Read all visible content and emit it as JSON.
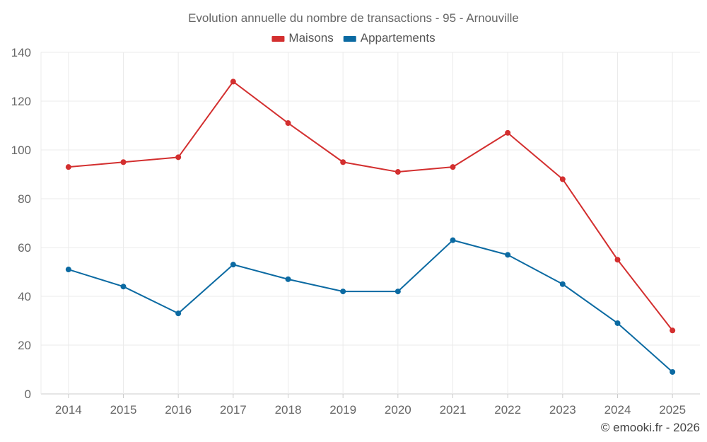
{
  "chart_data": {
    "type": "line",
    "title": "Evolution annuelle du nombre de transactions - 95 - Arnouville",
    "categories": [
      "2014",
      "2015",
      "2016",
      "2017",
      "2018",
      "2019",
      "2020",
      "2021",
      "2022",
      "2023",
      "2024",
      "2025"
    ],
    "series": [
      {
        "name": "Maisons",
        "color": "#d32f2f",
        "values": [
          93,
          95,
          97,
          128,
          111,
          95,
          91,
          93,
          107,
          88,
          55,
          26
        ]
      },
      {
        "name": "Appartements",
        "color": "#0b6aa2",
        "values": [
          51,
          44,
          33,
          53,
          47,
          42,
          42,
          63,
          57,
          45,
          29,
          9
        ]
      }
    ],
    "ylim": [
      0,
      140
    ],
    "yticks": [
      0,
      20,
      40,
      60,
      80,
      100,
      120,
      140
    ],
    "xlabel": "",
    "ylabel": "",
    "grid": true,
    "legend_position": "top-center",
    "credit": "© emooki.fr - 2026"
  }
}
